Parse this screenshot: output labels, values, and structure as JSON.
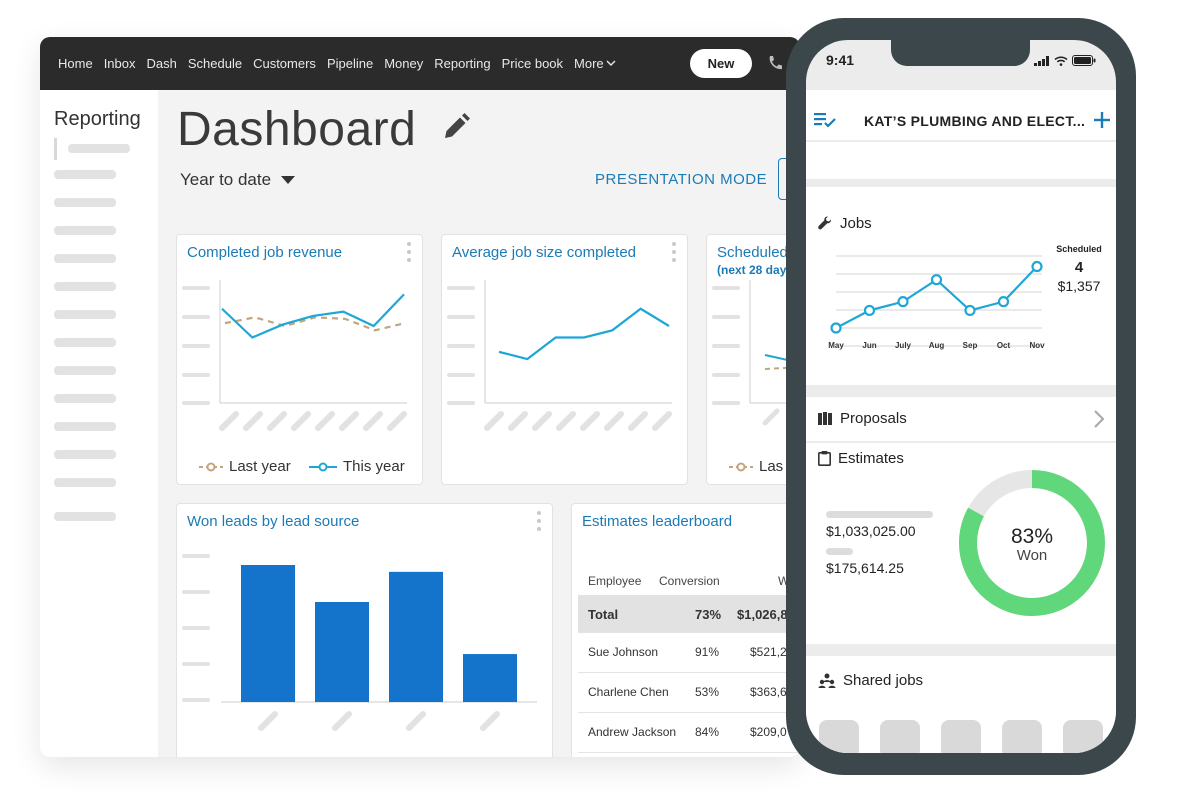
{
  "desktop": {
    "nav": {
      "items": [
        "Home",
        "Inbox",
        "Dash",
        "Schedule",
        "Customers",
        "Pipeline",
        "Money",
        "Reporting",
        "Price book"
      ],
      "more_label": "More",
      "new_label": "New"
    },
    "sidebar": {
      "title": "Reporting"
    },
    "page": {
      "title": "Dashboard",
      "range": "Year to date",
      "presentation_mode": "PRESENTATION MODE"
    },
    "cards": {
      "revenue": {
        "title": "Completed job revenue",
        "legend_last": "Last year",
        "legend_this": "This year"
      },
      "avg_job": {
        "title": "Average job size completed"
      },
      "scheduled": {
        "title": "Scheduled",
        "subtitle": "(next 28 day",
        "legend_last": "Las"
      },
      "won_leads": {
        "title": "Won leads by lead source"
      },
      "leaderboard": {
        "title": "Estimates leaderboard",
        "col_employee": "Employee",
        "col_conversion": "Conversion",
        "col_won": "W",
        "rows": [
          {
            "employee": "Total",
            "conversion": "73%",
            "won": "$1,026,8"
          },
          {
            "employee": "Sue Johnson",
            "conversion": "91%",
            "won": "$521,2"
          },
          {
            "employee": "Charlene Chen",
            "conversion": "53%",
            "won": "$363,6"
          },
          {
            "employee": "Andrew Jackson",
            "conversion": "84%",
            "won": "$209,0"
          }
        ]
      }
    }
  },
  "phone": {
    "status": {
      "time": "9:41"
    },
    "header": {
      "title": "KAT’S PLUMBING AND ELECT..."
    },
    "jobs": {
      "label": "Jobs",
      "scheduled_label": "Scheduled",
      "scheduled_count": "4",
      "scheduled_amount": "$1,357"
    },
    "proposals": {
      "label": "Proposals"
    },
    "estimates": {
      "label": "Estimates",
      "amount_total": "$1,033,025.00",
      "amount_won": "$175,614.25",
      "percent_label": "83%",
      "won_label": "Won",
      "won_fraction": 0.83
    },
    "shared_jobs": {
      "label": "Shared jobs"
    }
  },
  "colors": {
    "accent_blue": "#1b7bb6",
    "line_blue": "#1ea7d6",
    "last_year_tan": "#c4a47c",
    "bar_blue": "#1474cc",
    "donut_green": "#5fd77a",
    "nav_dark": "#2b2b2b",
    "phone_frame": "#3c474b"
  },
  "chart_data": [
    {
      "type": "line",
      "title": "Completed job revenue",
      "series": [
        {
          "name": "This year",
          "values": [
            60,
            40,
            49,
            55,
            58,
            48,
            70
          ]
        },
        {
          "name": "Last year",
          "values": [
            50,
            54,
            48,
            54,
            53,
            45,
            50
          ]
        }
      ]
    },
    {
      "type": "line",
      "title": "Average job size completed",
      "values": [
        30,
        25,
        40,
        40,
        45,
        60,
        48
      ]
    },
    {
      "type": "bar",
      "title": "Won leads by lead source",
      "values": [
        100,
        73,
        95,
        35
      ]
    },
    {
      "type": "line",
      "title": "Jobs",
      "categories": [
        "May",
        "Jun",
        "July",
        "Aug",
        "Sep",
        "Oct",
        "Nov"
      ],
      "values": [
        0,
        2,
        3,
        5.5,
        2,
        3,
        7
      ]
    }
  ]
}
